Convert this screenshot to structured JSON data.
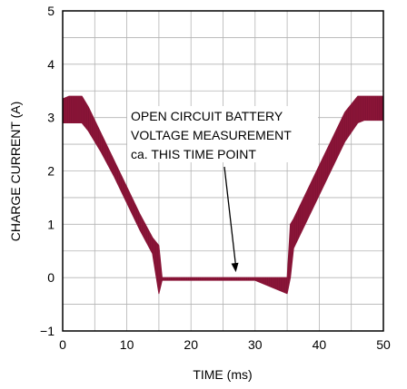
{
  "chart_data": {
    "type": "line",
    "title": "",
    "xlabel": "TIME (ms)",
    "ylabel": "CHARGE CURRENT (A)",
    "xlim": [
      0,
      50
    ],
    "ylim": [
      -1,
      5
    ],
    "x_ticks": [
      "0",
      "10",
      "20",
      "30",
      "40",
      "50"
    ],
    "y_ticks": [
      "−1",
      "0",
      "1",
      "2",
      "3",
      "4",
      "5"
    ],
    "grid": true,
    "series_color": "#8b1538",
    "annotation": {
      "lines": [
        "OPEN CIRCUIT BATTERY",
        "VOLTAGE MEASUREMENT",
        "ca. THIS TIME POINT"
      ],
      "points_to": {
        "x": 27,
        "y": 0
      }
    },
    "series": [
      {
        "x": [
          0,
          1,
          2,
          3,
          4,
          6,
          8,
          10,
          12,
          14,
          15,
          15.5,
          20,
          25,
          30,
          35,
          35.5,
          36,
          38,
          40,
          42,
          44,
          46,
          47,
          48,
          50
        ],
        "y_high": [
          3.35,
          3.4,
          3.4,
          3.4,
          3.2,
          2.7,
          2.2,
          1.7,
          1.2,
          0.75,
          0.6,
          0.0,
          0.0,
          0.0,
          0.0,
          0.0,
          1.0,
          1.1,
          1.6,
          2.1,
          2.6,
          3.1,
          3.4,
          3.4,
          3.4,
          3.4
        ],
        "y_low": [
          2.9,
          2.9,
          2.9,
          2.9,
          2.75,
          2.35,
          1.9,
          1.4,
          0.9,
          0.45,
          -0.3,
          -0.05,
          -0.05,
          -0.05,
          -0.05,
          -0.3,
          0.0,
          0.55,
          1.05,
          1.55,
          2.05,
          2.55,
          2.9,
          2.95,
          2.95,
          2.95
        ]
      }
    ]
  }
}
